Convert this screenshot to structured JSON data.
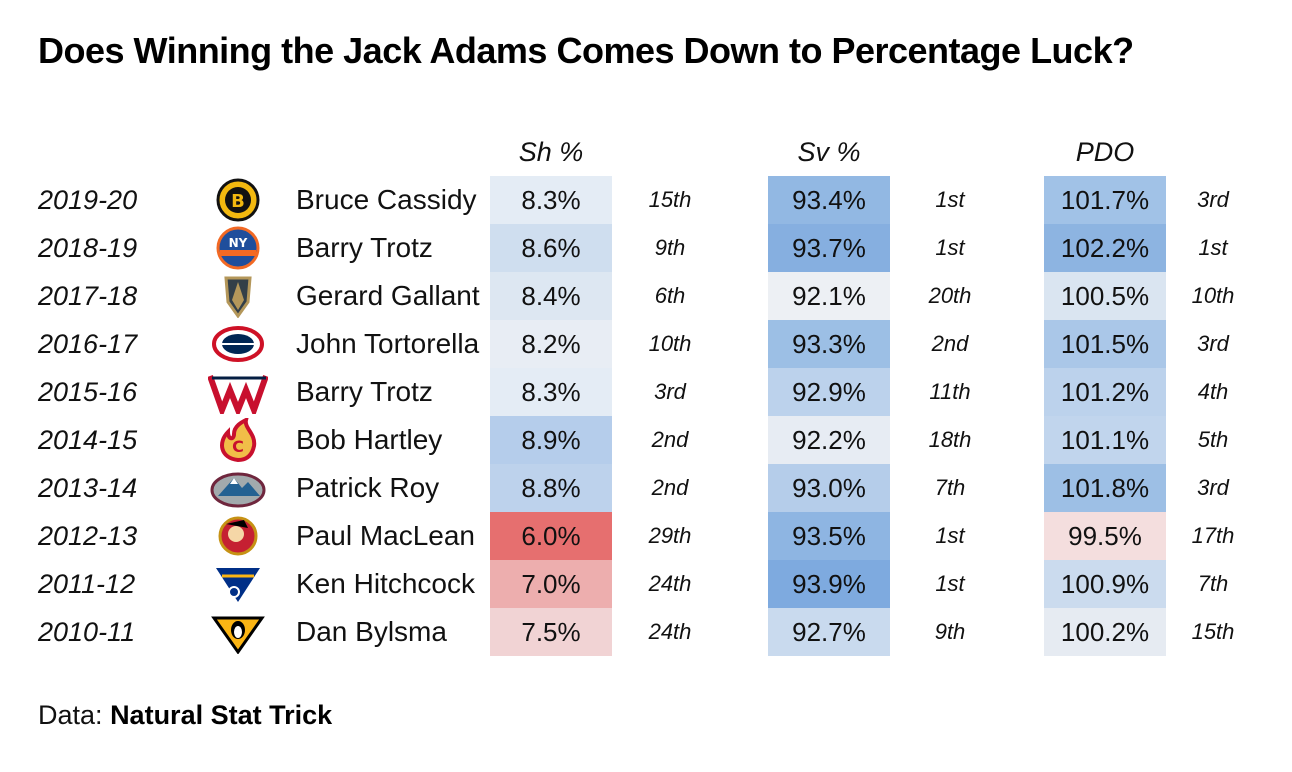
{
  "title": "Does Winning the Jack Adams Comes Down to Percentage Luck?",
  "source": {
    "prefix": "Data:",
    "name": "Natural Stat Trick"
  },
  "chart_data": {
    "type": "table",
    "columns": [
      "Sh %",
      "Sv %",
      "PDO"
    ],
    "rows": [
      {
        "season": "2019-20",
        "team_icon": "bruins-logo-icon",
        "coach": "Bruce Cassidy",
        "sh": "8.3%",
        "sh_rank": "15th",
        "sv": "93.4%",
        "sv_rank": "1st",
        "pdo": "101.7%",
        "pdo_rank": "3rd",
        "sh_color": "#e4ecf5",
        "sv_color": "#92b8e3",
        "pdo_color": "#a1c2e7"
      },
      {
        "season": "2018-19",
        "team_icon": "islanders-logo-icon",
        "coach": "Barry Trotz",
        "sh": "8.6%",
        "sh_rank": "9th",
        "sv": "93.7%",
        "sv_rank": "1st",
        "pdo": "102.2%",
        "pdo_rank": "1st",
        "sh_color": "#cfdeef",
        "sv_color": "#86afe0",
        "pdo_color": "#8db4e1"
      },
      {
        "season": "2017-18",
        "team_icon": "golden-knights-logo-icon",
        "coach": "Gerard Gallant",
        "sh": "8.4%",
        "sh_rank": "6th",
        "sv": "92.1%",
        "sv_rank": "20th",
        "pdo": "100.5%",
        "pdo_rank": "10th",
        "sh_color": "#dde7f2",
        "sv_color": "#edf0f4",
        "pdo_color": "#dae5f1"
      },
      {
        "season": "2016-17",
        "team_icon": "blue-jackets-logo-icon",
        "coach": "John Tortorella",
        "sh": "8.2%",
        "sh_rank": "10th",
        "sv": "93.3%",
        "sv_rank": "2nd",
        "pdo": "101.5%",
        "pdo_rank": "3rd",
        "sh_color": "#e8edf4",
        "sv_color": "#9cbfe5",
        "pdo_color": "#aac7e8"
      },
      {
        "season": "2015-16",
        "team_icon": "capitals-logo-icon",
        "coach": "Barry Trotz",
        "sh": "8.3%",
        "sh_rank": "3rd",
        "sv": "92.9%",
        "sv_rank": "11th",
        "pdo": "101.2%",
        "pdo_rank": "4th",
        "sh_color": "#e4ecf5",
        "sv_color": "#bcd2ec",
        "pdo_color": "#bcd2ec"
      },
      {
        "season": "2014-15",
        "team_icon": "flames-logo-icon",
        "coach": "Bob Hartley",
        "sh": "8.9%",
        "sh_rank": "2nd",
        "sv": "92.2%",
        "sv_rank": "18th",
        "pdo": "101.1%",
        "pdo_rank": "5th",
        "sh_color": "#b5cdeb",
        "sv_color": "#e7ecf3",
        "pdo_color": "#c1d5ed"
      },
      {
        "season": "2013-14",
        "team_icon": "avalanche-logo-icon",
        "coach": "Patrick Roy",
        "sh": "8.8%",
        "sh_rank": "2nd",
        "sv": "93.0%",
        "sv_rank": "7th",
        "pdo": "101.8%",
        "pdo_rank": "3rd",
        "sh_color": "#bdd2ec",
        "sv_color": "#b5cdea",
        "pdo_color": "#9dbfe5"
      },
      {
        "season": "2012-13",
        "team_icon": "senators-logo-icon",
        "coach": "Paul MacLean",
        "sh": "6.0%",
        "sh_rank": "29th",
        "sv": "93.5%",
        "sv_rank": "1st",
        "pdo": "99.5%",
        "pdo_rank": "17th",
        "sh_color": "#e66f6f",
        "sv_color": "#8eb5e2",
        "pdo_color": "#f4dede"
      },
      {
        "season": "2011-12",
        "team_icon": "blues-logo-icon",
        "coach": "Ken Hitchcock",
        "sh": "7.0%",
        "sh_rank": "24th",
        "sv": "93.9%",
        "sv_rank": "1st",
        "pdo": "100.9%",
        "pdo_rank": "7th",
        "sh_color": "#edaeae",
        "sv_color": "#7eaadf",
        "pdo_color": "#cbdbee"
      },
      {
        "season": "2010-11",
        "team_icon": "penguins-logo-icon",
        "coach": "Dan Bylsma",
        "sh": "7.5%",
        "sh_rank": "24th",
        "sv": "92.7%",
        "sv_rank": "9th",
        "pdo": "100.2%",
        "pdo_rank": "15th",
        "sh_color": "#f1d3d4",
        "sv_color": "#c9daee",
        "pdo_color": "#e6ebf2"
      }
    ]
  }
}
